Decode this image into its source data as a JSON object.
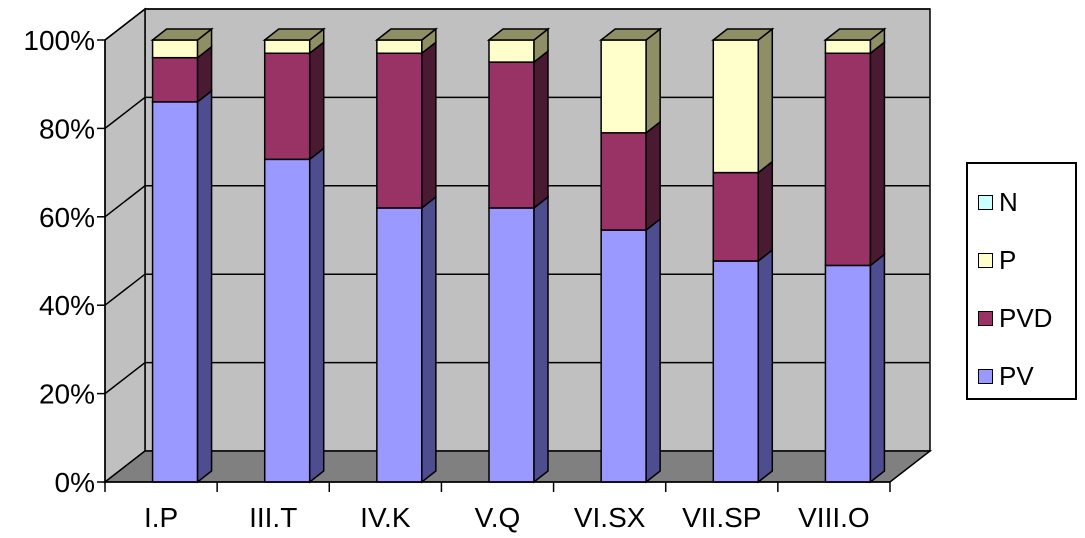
{
  "chart_data": {
    "type": "bar",
    "stacked": "percent",
    "three_d": true,
    "categories": [
      "I.P",
      "III.T",
      "IV.K",
      "V.Q",
      "VI.SX",
      "VII.SP",
      "VIII.O"
    ],
    "series": [
      {
        "name": "PV",
        "values": [
          86,
          73,
          62,
          62,
          57,
          50,
          49
        ]
      },
      {
        "name": "PVD",
        "values": [
          10,
          24,
          35,
          33,
          22,
          20,
          48
        ]
      },
      {
        "name": "P",
        "values": [
          4,
          3,
          3,
          5,
          21,
          30,
          3
        ]
      },
      {
        "name": "N",
        "values": [
          0,
          0,
          0,
          0,
          0,
          0,
          0
        ]
      }
    ],
    "y_ticks": [
      "0%",
      "20%",
      "40%",
      "60%",
      "80%",
      "100%"
    ],
    "ylim": [
      0,
      100
    ],
    "grid": true,
    "legend_position": "right",
    "colors": {
      "PV": {
        "front": "#9999ff",
        "side": "#4d4d8f"
      },
      "PVD": {
        "front": "#993366",
        "side": "#4a1a33"
      },
      "P": {
        "front": "#ffffcc",
        "side": "#8f8f66"
      },
      "N": {
        "front": "#ccffff",
        "side": "#669999"
      },
      "wall": "#c0c0c0",
      "floor": "#808080"
    }
  },
  "legend": {
    "items": [
      {
        "label": "N",
        "color": "#ccffff"
      },
      {
        "label": "P",
        "color": "#ffffcc"
      },
      {
        "label": "PVD",
        "color": "#993366"
      },
      {
        "label": "PV",
        "color": "#9999ff"
      }
    ]
  }
}
